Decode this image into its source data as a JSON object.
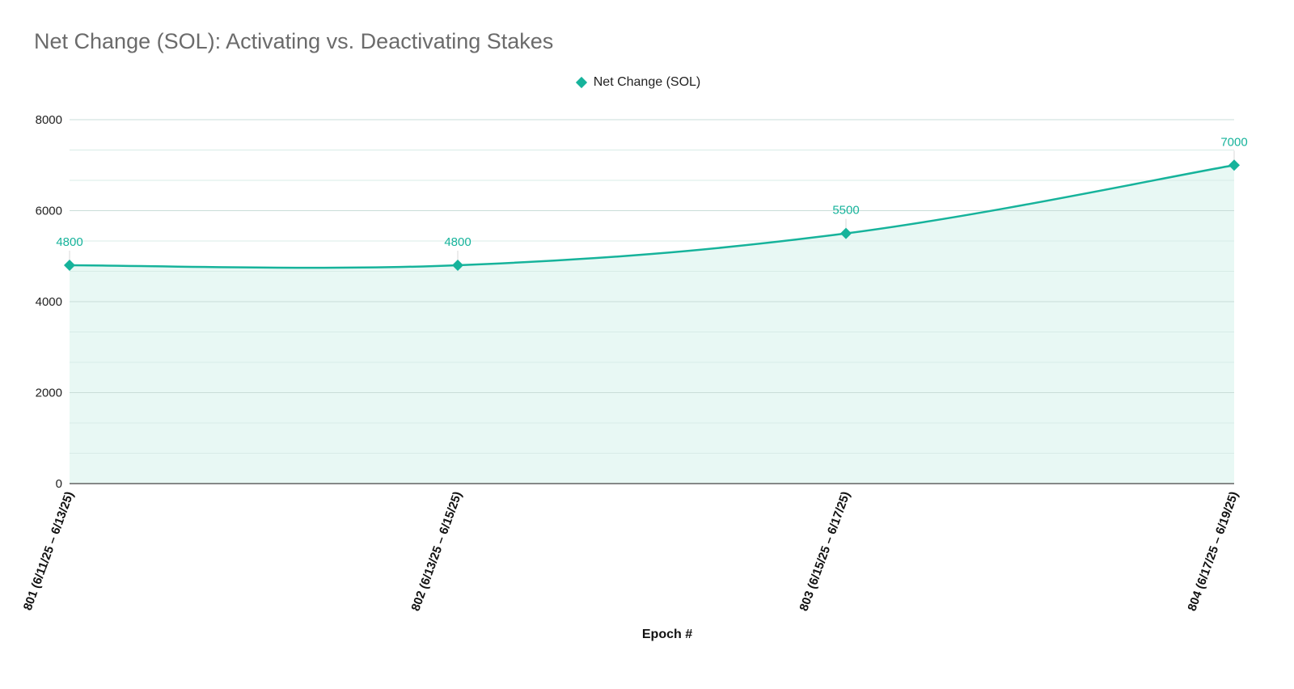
{
  "chart_data": {
    "type": "area",
    "title": "Net Change (SOL): Activating vs. Deactivating Stakes",
    "xlabel": "Epoch #",
    "ylabel": "",
    "ylim": [
      0,
      8000
    ],
    "yticks": [
      0,
      2000,
      4000,
      6000,
      8000
    ],
    "grid": true,
    "legend_position": "top-center",
    "categories": [
      "801 (6/11/25 – 6/13/25)",
      "802 (6/13/25 – 6/15/25)",
      "803 (6/15/25 – 6/17/25)",
      "804 (6/17/25 – 6/19/25)"
    ],
    "series": [
      {
        "name": "Net Change (SOL)",
        "values": [
          4800,
          4800,
          5500,
          7000
        ],
        "color": "#16b39b",
        "fill": "#e6f7f3",
        "marker": "diamond"
      }
    ]
  }
}
